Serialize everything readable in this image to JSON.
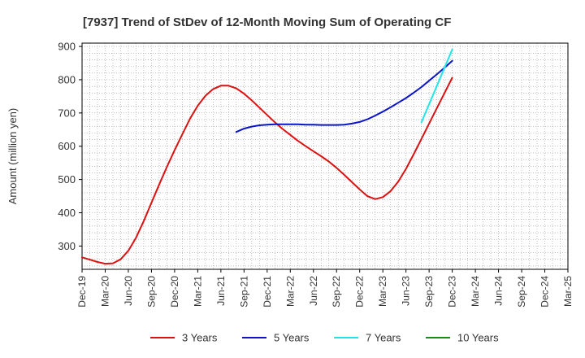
{
  "chart_data": {
    "type": "line",
    "title": "[7937]  Trend of StDev of 12-Month Moving Sum of Operating CF",
    "xlabel": "",
    "ylabel": "Amount (million yen)",
    "ylim": [
      230,
      910
    ],
    "yticks": [
      300,
      400,
      500,
      600,
      700,
      800,
      900
    ],
    "x_ticks": [
      "Dec-19",
      "Mar-20",
      "Jun-20",
      "Sep-20",
      "Dec-20",
      "Mar-21",
      "Jun-21",
      "Sep-21",
      "Dec-21",
      "Mar-22",
      "Jun-22",
      "Sep-22",
      "Dec-22",
      "Mar-23",
      "Jun-23",
      "Sep-23",
      "Dec-23",
      "Mar-24",
      "Jun-24",
      "Sep-24",
      "Dec-24",
      "Mar-25"
    ],
    "grid": true,
    "legend_position": "bottom",
    "series": [
      {
        "name": "3 Years",
        "color": "#dd1111",
        "points": [
          {
            "x": "Dec-19",
            "y": 266
          },
          {
            "x": "Jan-20",
            "y": 259
          },
          {
            "x": "Feb-20",
            "y": 252
          },
          {
            "x": "Mar-20",
            "y": 247
          },
          {
            "x": "Apr-20",
            "y": 248
          },
          {
            "x": "May-20",
            "y": 260
          },
          {
            "x": "Jun-20",
            "y": 286
          },
          {
            "x": "Jul-20",
            "y": 325
          },
          {
            "x": "Aug-20",
            "y": 375
          },
          {
            "x": "Sep-20",
            "y": 430
          },
          {
            "x": "Oct-20",
            "y": 485
          },
          {
            "x": "Nov-20",
            "y": 538
          },
          {
            "x": "Dec-20",
            "y": 588
          },
          {
            "x": "Jan-21",
            "y": 636
          },
          {
            "x": "Feb-21",
            "y": 683
          },
          {
            "x": "Mar-21",
            "y": 722
          },
          {
            "x": "Apr-21",
            "y": 752
          },
          {
            "x": "May-21",
            "y": 772
          },
          {
            "x": "Jun-21",
            "y": 782
          },
          {
            "x": "Jul-21",
            "y": 782
          },
          {
            "x": "Aug-21",
            "y": 774
          },
          {
            "x": "Sep-21",
            "y": 758
          },
          {
            "x": "Oct-21",
            "y": 738
          },
          {
            "x": "Nov-21",
            "y": 716
          },
          {
            "x": "Dec-21",
            "y": 694
          },
          {
            "x": "Jan-22",
            "y": 672
          },
          {
            "x": "Feb-22",
            "y": 652
          },
          {
            "x": "Mar-22",
            "y": 634
          },
          {
            "x": "Apr-22",
            "y": 616
          },
          {
            "x": "May-22",
            "y": 600
          },
          {
            "x": "Jun-22",
            "y": 585
          },
          {
            "x": "Jul-22",
            "y": 570
          },
          {
            "x": "Aug-22",
            "y": 554
          },
          {
            "x": "Sep-22",
            "y": 535
          },
          {
            "x": "Oct-22",
            "y": 514
          },
          {
            "x": "Nov-22",
            "y": 492
          },
          {
            "x": "Dec-22",
            "y": 470
          },
          {
            "x": "Jan-23",
            "y": 450
          },
          {
            "x": "Feb-23",
            "y": 441
          },
          {
            "x": "Mar-23",
            "y": 447
          },
          {
            "x": "Apr-23",
            "y": 465
          },
          {
            "x": "May-23",
            "y": 494
          },
          {
            "x": "Jun-23",
            "y": 532
          },
          {
            "x": "Jul-23",
            "y": 576
          },
          {
            "x": "Aug-23",
            "y": 622
          },
          {
            "x": "Sep-23",
            "y": 668
          },
          {
            "x": "Oct-23",
            "y": 714
          },
          {
            "x": "Nov-23",
            "y": 760
          },
          {
            "x": "Dec-23",
            "y": 806
          }
        ]
      },
      {
        "name": "5 Years",
        "color": "#0a14c8",
        "points": [
          {
            "x": "Aug-21",
            "y": 643
          },
          {
            "x": "Sep-21",
            "y": 653
          },
          {
            "x": "Oct-21",
            "y": 659
          },
          {
            "x": "Nov-21",
            "y": 663
          },
          {
            "x": "Dec-21",
            "y": 665
          },
          {
            "x": "Jan-22",
            "y": 666
          },
          {
            "x": "Feb-22",
            "y": 666
          },
          {
            "x": "Mar-22",
            "y": 666
          },
          {
            "x": "Apr-22",
            "y": 666
          },
          {
            "x": "May-22",
            "y": 665
          },
          {
            "x": "Jun-22",
            "y": 665
          },
          {
            "x": "Jul-22",
            "y": 664
          },
          {
            "x": "Aug-22",
            "y": 664
          },
          {
            "x": "Sep-22",
            "y": 664
          },
          {
            "x": "Oct-22",
            "y": 665
          },
          {
            "x": "Nov-22",
            "y": 668
          },
          {
            "x": "Dec-22",
            "y": 673
          },
          {
            "x": "Jan-23",
            "y": 681
          },
          {
            "x": "Feb-23",
            "y": 692
          },
          {
            "x": "Mar-23",
            "y": 704
          },
          {
            "x": "Apr-23",
            "y": 717
          },
          {
            "x": "May-23",
            "y": 731
          },
          {
            "x": "Jun-23",
            "y": 745
          },
          {
            "x": "Jul-23",
            "y": 761
          },
          {
            "x": "Aug-23",
            "y": 778
          },
          {
            "x": "Sep-23",
            "y": 797
          },
          {
            "x": "Oct-23",
            "y": 816
          },
          {
            "x": "Nov-23",
            "y": 836
          },
          {
            "x": "Dec-23",
            "y": 857
          }
        ]
      },
      {
        "name": "7 Years",
        "color": "#22e6e6",
        "points": [
          {
            "x": "Aug-23",
            "y": 672
          },
          {
            "x": "Dec-23",
            "y": 891
          }
        ]
      },
      {
        "name": "10 Years",
        "color": "#1a8a1a",
        "points": []
      }
    ]
  }
}
